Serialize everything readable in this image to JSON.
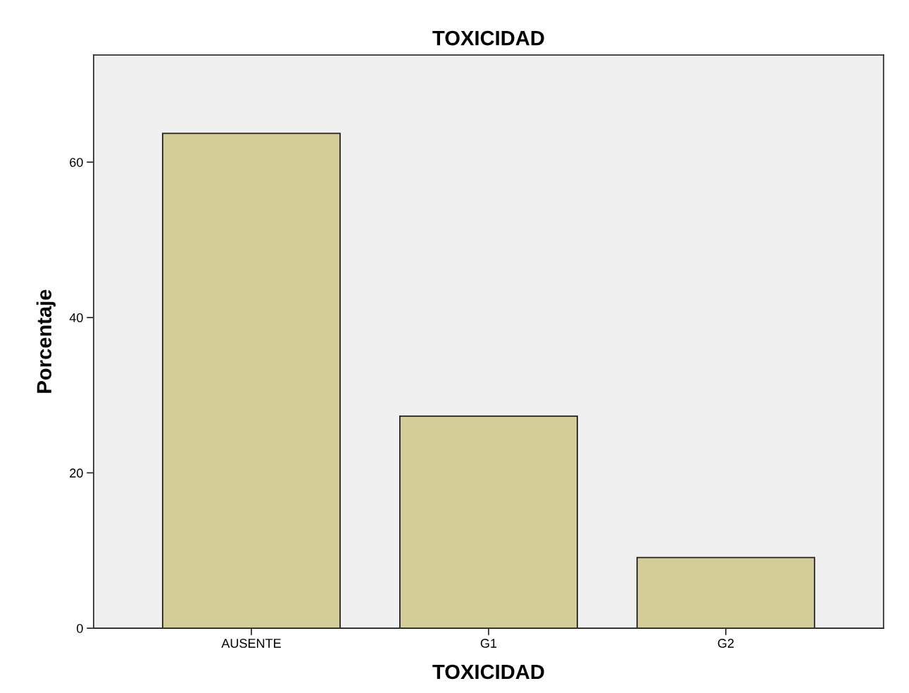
{
  "chart_data": {
    "type": "bar",
    "title": "TOXICIDAD",
    "xlabel": "TOXICIDAD",
    "ylabel": "Porcentaje",
    "categories": [
      "AUSENTE",
      "G1",
      "G2"
    ],
    "values": [
      63.7,
      27.3,
      9.1
    ],
    "color": "#d3cd98",
    "ylim": [
      0,
      73.8
    ],
    "yticks": [
      0,
      20,
      40,
      60
    ],
    "grid": false
  }
}
